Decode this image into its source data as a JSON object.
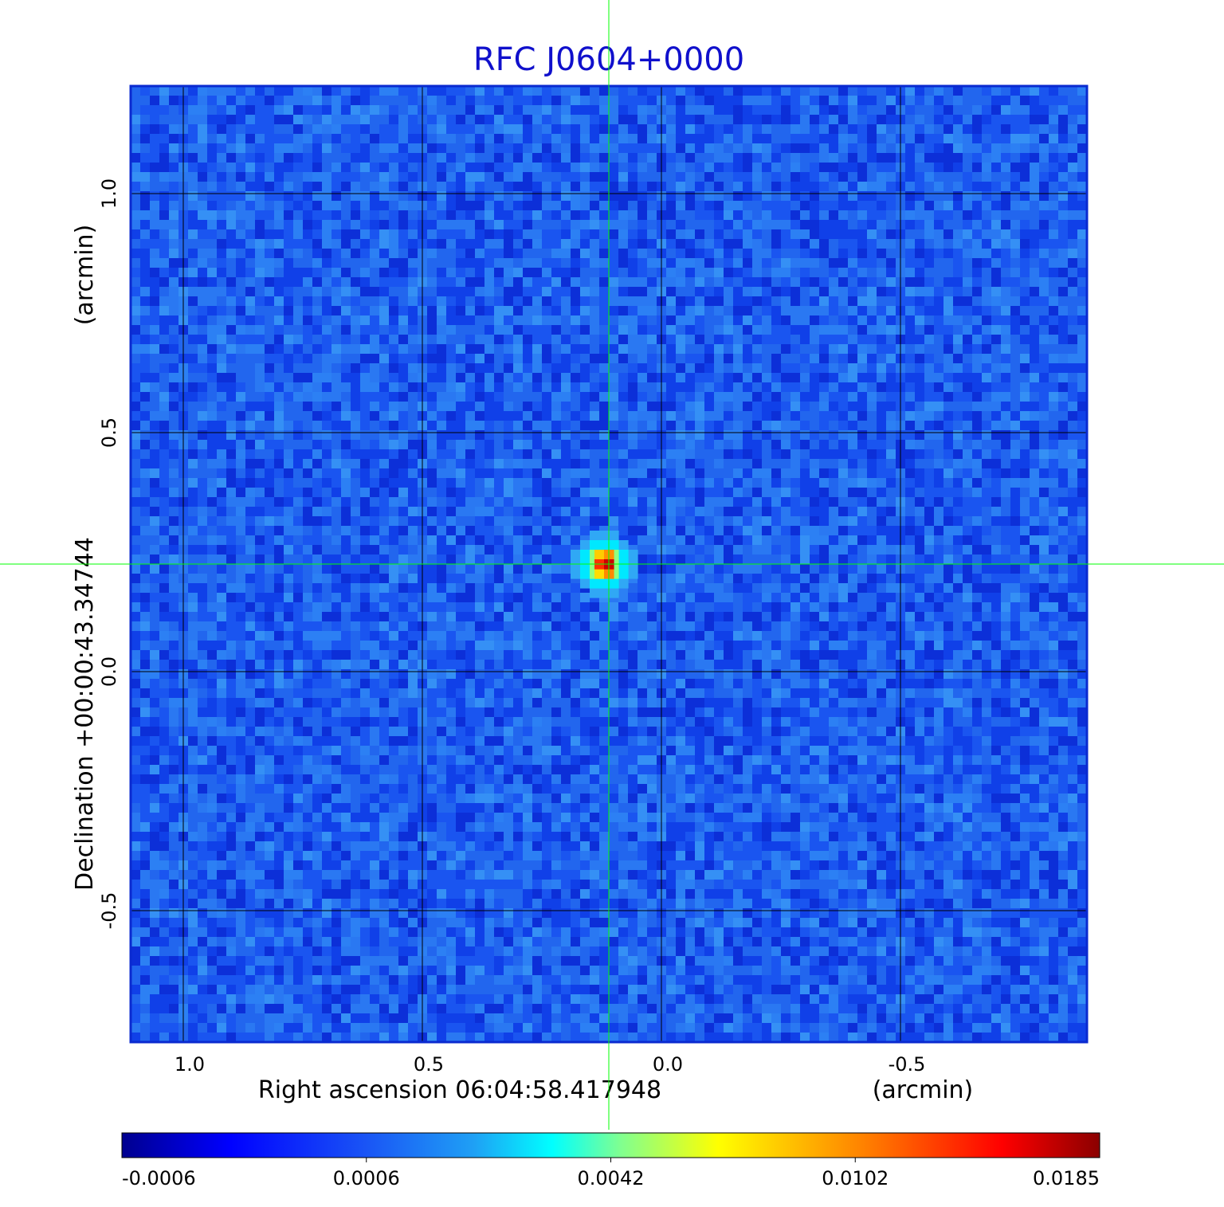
{
  "chart_data": {
    "type": "heatmap",
    "title": "RFC J0604+0000",
    "xlabel": "Right ascension  06:04:58.417948",
    "xunit": "(arcmin)",
    "ylabel": "Declination  +00:00:43.34744",
    "yunit": "(arcmin)",
    "xlim": [
      1.11,
      -0.89
    ],
    "ylim": [
      -0.775,
      1.225
    ],
    "x_ticks": [
      1.0,
      0.5,
      0.0,
      -0.5
    ],
    "x_tick_labels": [
      "1.0",
      "0.5",
      "0.0",
      "-0.5"
    ],
    "y_ticks": [
      1.0,
      0.5,
      0.0,
      -0.5
    ],
    "y_tick_labels": [
      "1.0",
      "0.5",
      "0.0",
      "-0.5"
    ],
    "grid": true,
    "crosshair": {
      "x": 0.11,
      "y": 0.225,
      "color": "#00ff00"
    },
    "source": {
      "x": 0.11,
      "y": 0.225,
      "peak": 0.0185
    },
    "colormap": "jet",
    "colorbar_ticks": [
      -0.0006,
      0.0006,
      0.0042,
      0.0102,
      0.0185
    ],
    "colorbar_tick_labels": [
      "-0.0006",
      "0.0006",
      "0.0042",
      "0.0102",
      "0.0185"
    ],
    "title_color": "#1010cc"
  }
}
